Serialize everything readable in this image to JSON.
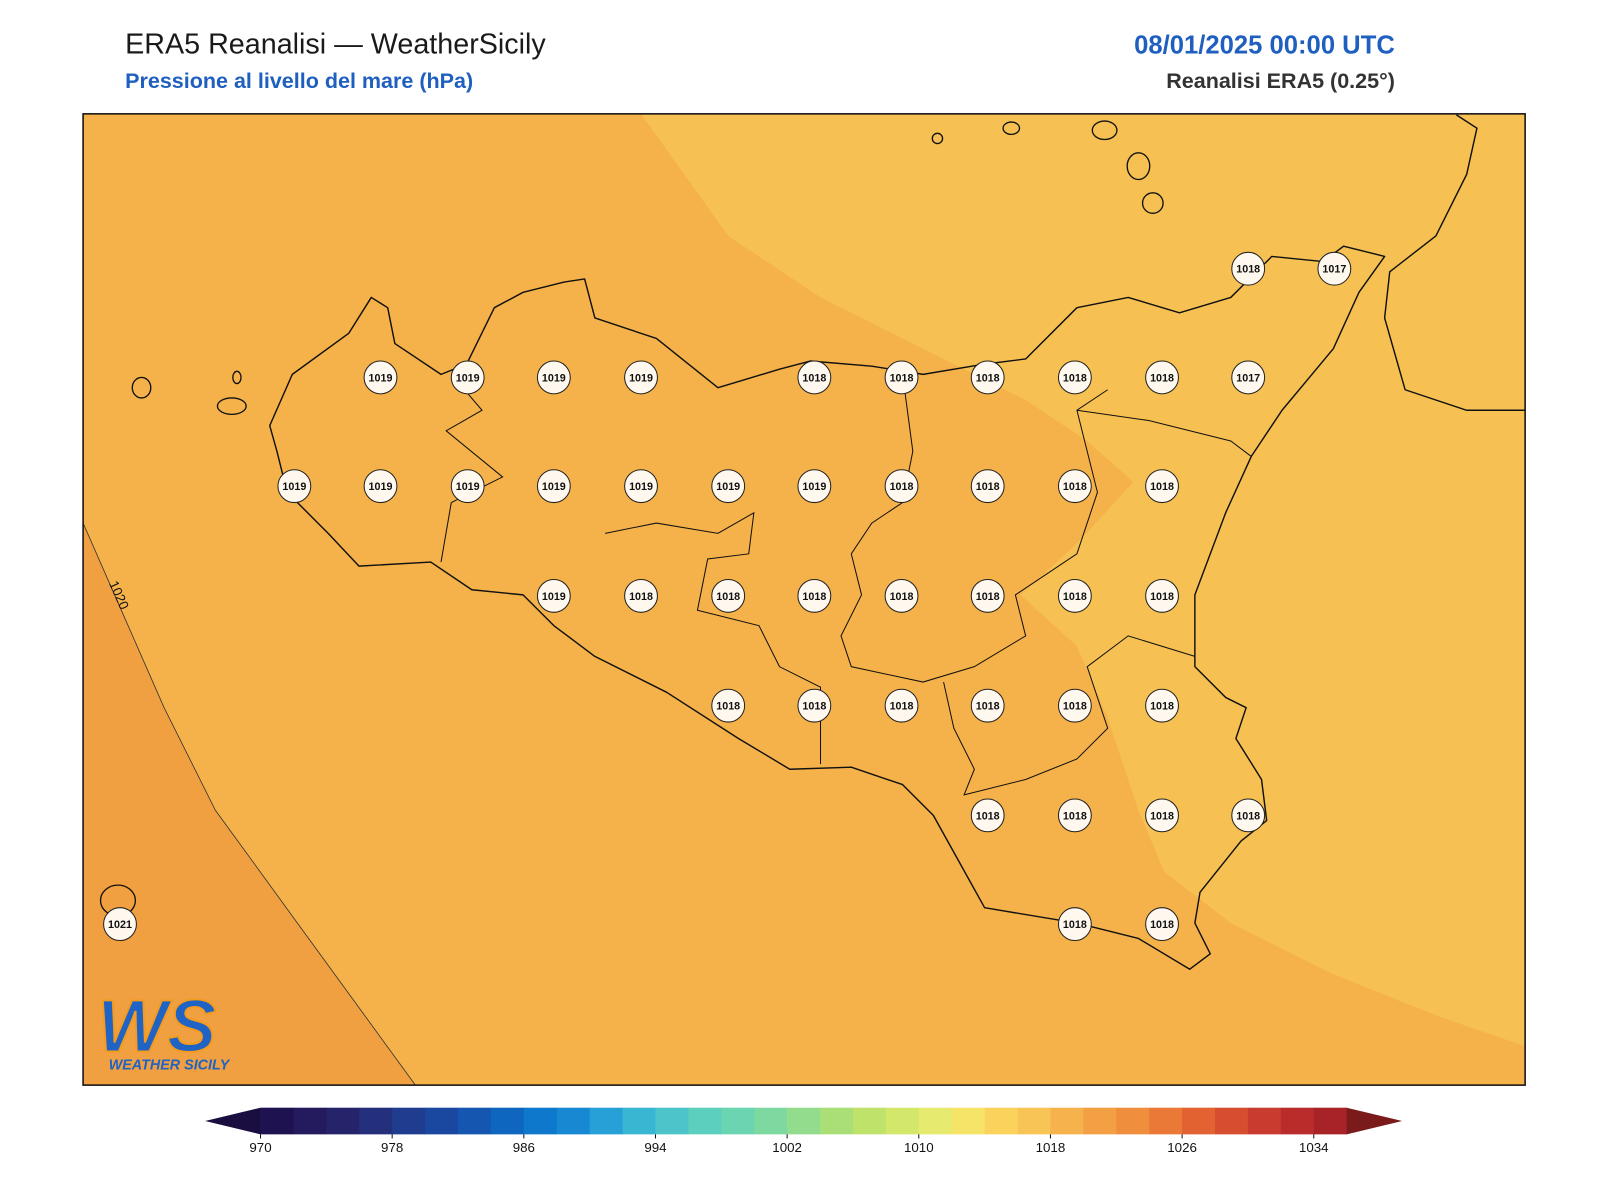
{
  "header": {
    "title": "ERA5 Reanalisi — WeatherSicily",
    "subtitle": "Pressione al livello del mare (hPa)",
    "datetime": "08/01/2025 00:00 UTC",
    "source": "Reanalisi ERA5 (0.25°)"
  },
  "map": {
    "contour_label": "1020",
    "stations": [
      1018,
      1017,
      1019,
      1019,
      1019,
      1019,
      1018,
      1018,
      1018,
      1018,
      1018,
      1017,
      1019,
      1019,
      1019,
      1019,
      1019,
      1019,
      1019,
      1018,
      1018,
      1018,
      1018,
      1019,
      1018,
      1018,
      1018,
      1018,
      1018,
      1018,
      1018,
      1018,
      1018,
      1018,
      1018,
      1018,
      1018,
      1018,
      1018,
      1018,
      1018,
      1021,
      1018,
      1018
    ]
  },
  "logo": {
    "mark": "WS",
    "text": "WEATHER SICILY"
  },
  "colorbar": {
    "range": [
      970,
      1036
    ],
    "ticks": [
      970,
      978,
      986,
      994,
      1002,
      1010,
      1018,
      1026,
      1034
    ],
    "colors": [
      "#1f1250",
      "#241a5e",
      "#25246b",
      "#24307c",
      "#1f3c8f",
      "#1a48a0",
      "#1456b0",
      "#0f66bf",
      "#0e78cc",
      "#1888d2",
      "#26a0d6",
      "#38b6d2",
      "#4cc4c9",
      "#5ccfbf",
      "#6ad5b0",
      "#7dd99f",
      "#93dc8e",
      "#aadf78",
      "#bfe36a",
      "#d3e86a",
      "#e6ea6e",
      "#f6e468",
      "#fbd35c",
      "#f9c456",
      "#f6b24c",
      "#f2a043",
      "#ef8e3d",
      "#ea7937",
      "#e26232",
      "#d64d2f",
      "#c93b2e",
      "#ba2b2b",
      "#a82327"
    ],
    "under": "#1a0d40",
    "over": "#7a1a1a"
  }
}
